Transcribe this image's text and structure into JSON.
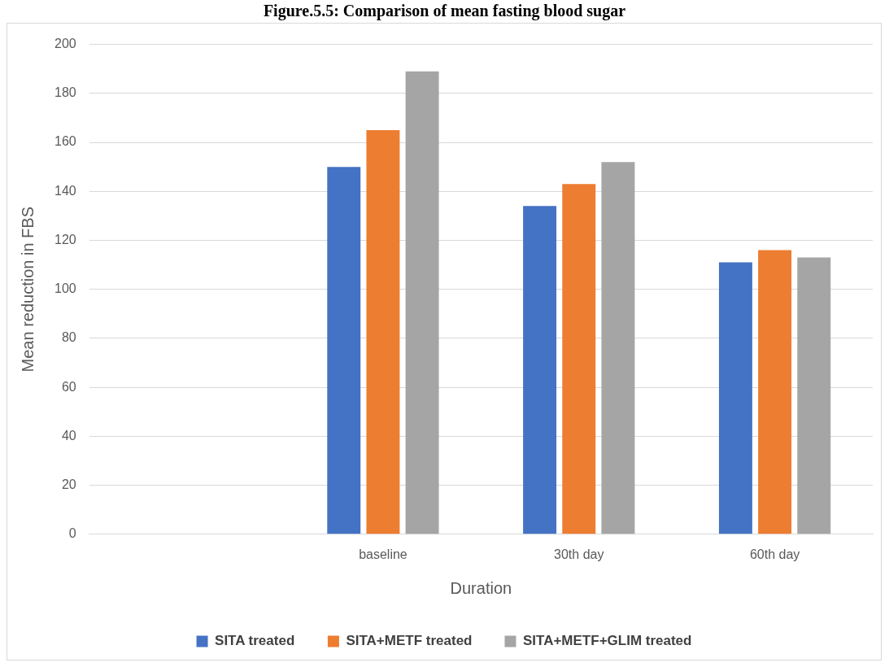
{
  "chart_data": {
    "type": "bar",
    "title": "Figure.5.5: Comparison of mean fasting blood sugar",
    "xlabel": "Duration",
    "ylabel": "Mean reduction in FBS",
    "categories": [
      null,
      "baseline",
      "30th day",
      "60th day"
    ],
    "series": [
      {
        "name": "SITA treated",
        "color": "#4472c4",
        "values": [
          null,
          150,
          134,
          111
        ]
      },
      {
        "name": "SITA+METF treated",
        "color": "#ed7d31",
        "values": [
          null,
          165,
          143,
          116
        ]
      },
      {
        "name": "SITA+METF+GLIM treated",
        "color": "#a5a5a5",
        "values": [
          null,
          189,
          152,
          113
        ]
      }
    ],
    "ylim": [
      0,
      200
    ],
    "yticks": [
      0,
      20,
      40,
      60,
      80,
      100,
      120,
      140,
      160,
      180,
      200
    ],
    "grid": "y",
    "legend": "bottom"
  }
}
